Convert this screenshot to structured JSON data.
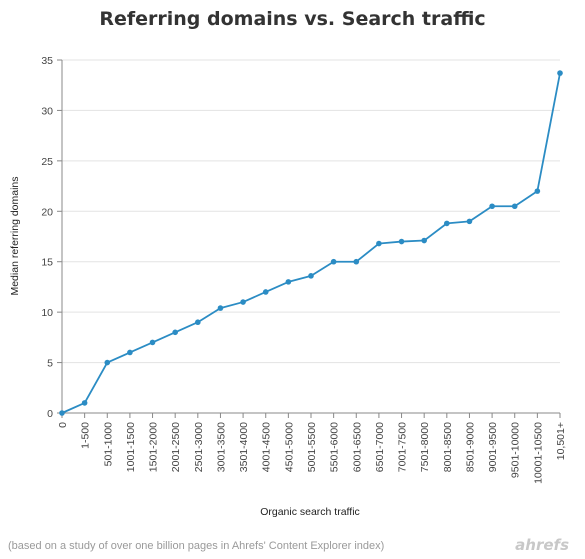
{
  "chart_data": {
    "type": "line",
    "title": "Referring domains vs. Search traffic",
    "xlabel": "Organic search traffic",
    "ylabel": "Median referring domains",
    "ylim": [
      0,
      35
    ],
    "yticks": [
      0,
      5,
      10,
      15,
      20,
      25,
      30,
      35
    ],
    "grid": true,
    "categories": [
      "0",
      "1-500",
      "501-1000",
      "1001-1500",
      "1501-2000",
      "2001-2500",
      "2501-3000",
      "3001-3500",
      "3501-4000",
      "4001-4500",
      "4501-5000",
      "5001-5500",
      "5501-6000",
      "6001-6500",
      "6501-7000",
      "7001-7500",
      "7501-8000",
      "8001-8500",
      "8501-9000",
      "9001-9500",
      "9501-10000",
      "10001-10500",
      "10,501+"
    ],
    "series": [
      {
        "color": "#2b8cc4",
        "values": [
          0,
          1,
          5,
          6,
          7,
          8,
          9,
          10.4,
          11,
          12,
          13,
          13.6,
          15,
          15,
          16.8,
          17,
          17.1,
          18.8,
          19,
          20.5,
          20.5,
          22,
          33.7
        ]
      }
    ]
  },
  "footnote": "(based on a study of over one billion pages in Ahrefs' Content Explorer index)",
  "brand": "ahrefs"
}
